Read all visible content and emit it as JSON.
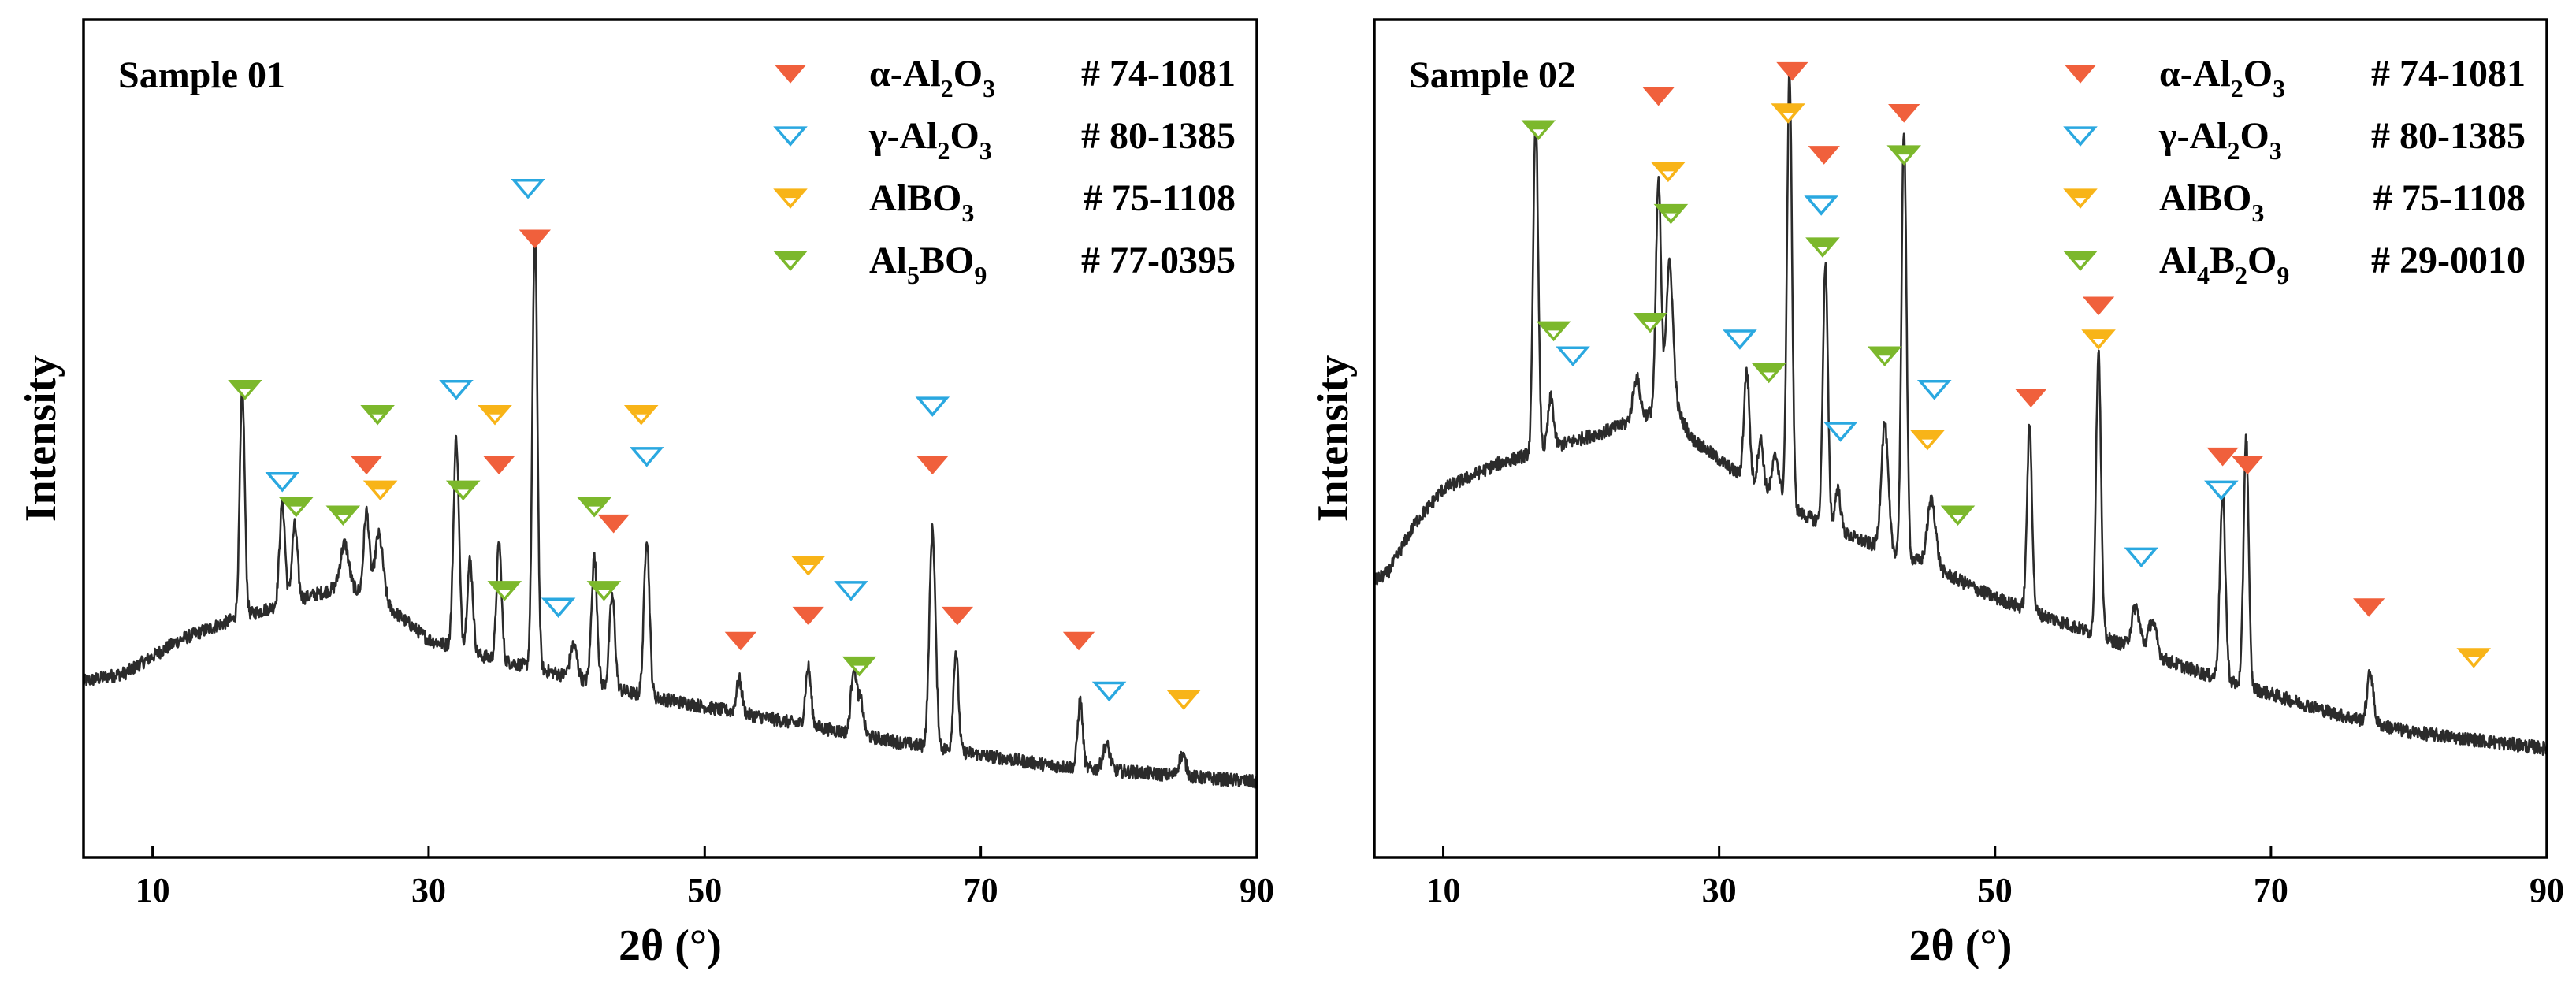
{
  "colors": {
    "alpha": "#f0603c",
    "gamma": "#2aa8e0",
    "albo3": "#f8b418",
    "minor": "#7cb82c",
    "line": "#2b2b2b"
  },
  "chart_data": [
    {
      "type": "line",
      "title": "Sample 01",
      "xlabel": "2θ  (°)",
      "ylabel": "Intensity",
      "xlim": [
        5,
        90
      ],
      "ylim": [
        0,
        100
      ],
      "xticks": [
        10,
        30,
        50,
        70,
        90
      ],
      "xtick_labels": [
        "10",
        "30",
        "50",
        "70",
        "90"
      ],
      "legend": [
        {
          "phase": "alpha",
          "filled": true,
          "base": "α-Al",
          "s1": "2",
          "mid": "O",
          "s2": "3",
          "card": "# 74-1081"
        },
        {
          "phase": "gamma",
          "filled": false,
          "base": "γ-Al",
          "s1": "2",
          "mid": "O",
          "s2": "3",
          "card": "# 80-1385"
        },
        {
          "phase": "albo3",
          "filled": "half",
          "base": "AlBO",
          "s1": "3",
          "mid": "",
          "s2": "",
          "card": "# 75-1108"
        },
        {
          "phase": "minor",
          "filled": "half",
          "base": "Al",
          "s1": "5",
          "mid": "BO",
          "s2": "9",
          "card": "# 77-0395"
        }
      ],
      "baseline": [
        [
          5,
          21.0
        ],
        [
          8,
          22.0
        ],
        [
          12,
          26.0
        ],
        [
          16,
          28.5
        ],
        [
          20,
          30.5
        ],
        [
          24,
          32.5
        ],
        [
          27,
          30.0
        ],
        [
          30,
          26.0
        ],
        [
          34,
          24.0
        ],
        [
          38,
          22.5
        ],
        [
          45,
          19.5
        ],
        [
          55,
          16.5
        ],
        [
          65,
          13.5
        ],
        [
          75,
          11.0
        ],
        [
          90,
          9.0
        ]
      ],
      "peaks": [
        {
          "x": 16.5,
          "h": 27,
          "w": 0.18
        },
        {
          "x": 19.4,
          "h": 12,
          "w": 0.2
        },
        {
          "x": 20.3,
          "h": 9,
          "w": 0.2
        },
        {
          "x": 23.9,
          "h": 5,
          "w": 0.3
        },
        {
          "x": 25.5,
          "h": 10,
          "w": 0.2
        },
        {
          "x": 26.4,
          "h": 8,
          "w": 0.3
        },
        {
          "x": 32.0,
          "h": 25,
          "w": 0.2
        },
        {
          "x": 33.0,
          "h": 11,
          "w": 0.2
        },
        {
          "x": 35.1,
          "h": 14,
          "w": 0.18
        },
        {
          "x": 37.7,
          "h": 52,
          "w": 0.18
        },
        {
          "x": 40.5,
          "h": 4,
          "w": 0.25
        },
        {
          "x": 42.0,
          "h": 15,
          "w": 0.2
        },
        {
          "x": 43.3,
          "h": 11,
          "w": 0.2
        },
        {
          "x": 45.8,
          "h": 19,
          "w": 0.2
        },
        {
          "x": 52.5,
          "h": 4,
          "w": 0.2
        },
        {
          "x": 57.5,
          "h": 7,
          "w": 0.2
        },
        {
          "x": 60.8,
          "h": 8,
          "w": 0.2
        },
        {
          "x": 61.3,
          "h": 4,
          "w": 0.2
        },
        {
          "x": 66.5,
          "h": 26,
          "w": 0.22
        },
        {
          "x": 68.2,
          "h": 12,
          "w": 0.18
        },
        {
          "x": 77.2,
          "h": 8,
          "w": 0.18
        },
        {
          "x": 79.1,
          "h": 3,
          "w": 0.25
        },
        {
          "x": 84.6,
          "h": 2.5,
          "w": 0.25
        }
      ],
      "markers": [
        {
          "x": 16.7,
          "y": 56,
          "phase": "minor"
        },
        {
          "x": 19.4,
          "y": 45,
          "phase": "gamma"
        },
        {
          "x": 20.4,
          "y": 42,
          "phase": "minor"
        },
        {
          "x": 23.8,
          "y": 41,
          "phase": "minor"
        },
        {
          "x": 25.5,
          "y": 47,
          "phase": "alpha"
        },
        {
          "x": 26.3,
          "y": 53,
          "phase": "minor"
        },
        {
          "x": 26.5,
          "y": 44,
          "phase": "albo3"
        },
        {
          "x": 32.0,
          "y": 56,
          "phase": "gamma"
        },
        {
          "x": 32.5,
          "y": 44,
          "phase": "minor"
        },
        {
          "x": 34.8,
          "y": 53,
          "phase": "albo3"
        },
        {
          "x": 35.1,
          "y": 47,
          "phase": "alpha"
        },
        {
          "x": 35.5,
          "y": 32,
          "phase": "minor"
        },
        {
          "x": 37.2,
          "y": 80,
          "phase": "gamma"
        },
        {
          "x": 37.7,
          "y": 74,
          "phase": "alpha"
        },
        {
          "x": 39.4,
          "y": 30,
          "phase": "gamma"
        },
        {
          "x": 42.0,
          "y": 42,
          "phase": "minor"
        },
        {
          "x": 42.7,
          "y": 32,
          "phase": "minor"
        },
        {
          "x": 43.4,
          "y": 40,
          "phase": "alpha"
        },
        {
          "x": 45.4,
          "y": 53,
          "phase": "albo3"
        },
        {
          "x": 45.8,
          "y": 48,
          "phase": "gamma"
        },
        {
          "x": 52.6,
          "y": 26,
          "phase": "alpha"
        },
        {
          "x": 57.5,
          "y": 35,
          "phase": "albo3"
        },
        {
          "x": 57.5,
          "y": 29,
          "phase": "alpha"
        },
        {
          "x": 60.6,
          "y": 32,
          "phase": "gamma"
        },
        {
          "x": 61.2,
          "y": 23,
          "phase": "minor"
        },
        {
          "x": 66.5,
          "y": 54,
          "phase": "gamma"
        },
        {
          "x": 66.5,
          "y": 47,
          "phase": "alpha"
        },
        {
          "x": 68.3,
          "y": 29,
          "phase": "alpha"
        },
        {
          "x": 77.1,
          "y": 26,
          "phase": "alpha"
        },
        {
          "x": 79.3,
          "y": 20,
          "phase": "gamma"
        },
        {
          "x": 84.7,
          "y": 19,
          "phase": "albo3"
        }
      ]
    },
    {
      "type": "line",
      "title": "Sample 02",
      "xlabel": "2θ  (°)",
      "ylabel": "Intensity",
      "xlim": [
        5,
        90
      ],
      "ylim": [
        0,
        100
      ],
      "xticks": [
        10,
        30,
        50,
        70,
        90
      ],
      "xtick_labels": [
        "10",
        "30",
        "50",
        "70",
        "90"
      ],
      "legend": [
        {
          "phase": "alpha",
          "filled": true,
          "base": "α-Al",
          "s1": "2",
          "mid": "O",
          "s2": "3",
          "card": "# 74-1081"
        },
        {
          "phase": "gamma",
          "filled": false,
          "base": "γ-Al",
          "s1": "2",
          "mid": "O",
          "s2": "3",
          "card": "# 80-1385"
        },
        {
          "phase": "albo3",
          "filled": "half",
          "base": "AlBO",
          "s1": "3",
          "mid": "",
          "s2": "",
          "card": "# 75-1108"
        },
        {
          "phase": "minor",
          "filled": "half",
          "base": "Al",
          "s1": "4",
          "mid": "B",
          "s2": "2",
          "tail": "O",
          "s3": "9",
          "card": "# 29-0010"
        }
      ],
      "baseline": [
        [
          5,
          33.0
        ],
        [
          6,
          34.0
        ],
        [
          8,
          40.0
        ],
        [
          10,
          44.0
        ],
        [
          14,
          47.0
        ],
        [
          18,
          49.0
        ],
        [
          22,
          51.0
        ],
        [
          25,
          53.0
        ],
        [
          26.5,
          55.0
        ],
        [
          28,
          50.0
        ],
        [
          32,
          45.0
        ],
        [
          36,
          41.0
        ],
        [
          40,
          38.0
        ],
        [
          45,
          35.0
        ],
        [
          50,
          31.0
        ],
        [
          55,
          28.0
        ],
        [
          60,
          25.0
        ],
        [
          65,
          22.0
        ],
        [
          70,
          19.5
        ],
        [
          75,
          17.0
        ],
        [
          80,
          15.0
        ],
        [
          85,
          14.0
        ],
        [
          90,
          13.0
        ]
      ],
      "peaks": [
        {
          "x": 16.7,
          "h": 40,
          "w": 0.18
        },
        {
          "x": 17.8,
          "h": 6,
          "w": 0.2
        },
        {
          "x": 24.0,
          "h": 5,
          "w": 0.25
        },
        {
          "x": 25.6,
          "h": 27,
          "w": 0.18
        },
        {
          "x": 26.4,
          "h": 16,
          "w": 0.25
        },
        {
          "x": 32.0,
          "h": 13,
          "w": 0.2
        },
        {
          "x": 33.0,
          "h": 6,
          "w": 0.2
        },
        {
          "x": 34.1,
          "h": 5,
          "w": 0.25
        },
        {
          "x": 35.1,
          "h": 52,
          "w": 0.18
        },
        {
          "x": 37.7,
          "h": 31,
          "w": 0.18
        },
        {
          "x": 38.6,
          "h": 5,
          "w": 0.2
        },
        {
          "x": 42.0,
          "h": 15,
          "w": 0.25
        },
        {
          "x": 43.4,
          "h": 51,
          "w": 0.18
        },
        {
          "x": 45.4,
          "h": 8,
          "w": 0.3
        },
        {
          "x": 52.5,
          "h": 22,
          "w": 0.18
        },
        {
          "x": 57.5,
          "h": 34,
          "w": 0.18
        },
        {
          "x": 60.2,
          "h": 5,
          "w": 0.3
        },
        {
          "x": 61.4,
          "h": 4,
          "w": 0.3
        },
        {
          "x": 66.5,
          "h": 22,
          "w": 0.2
        },
        {
          "x": 68.2,
          "h": 30,
          "w": 0.18
        },
        {
          "x": 77.2,
          "h": 6,
          "w": 0.22
        }
      ],
      "markers": [
        {
          "x": 16.9,
          "y": 87,
          "phase": "minor"
        },
        {
          "x": 18.0,
          "y": 63,
          "phase": "minor"
        },
        {
          "x": 19.4,
          "y": 60,
          "phase": "gamma"
        },
        {
          "x": 25.0,
          "y": 64,
          "phase": "minor"
        },
        {
          "x": 25.6,
          "y": 91,
          "phase": "alpha"
        },
        {
          "x": 26.3,
          "y": 82,
          "phase": "albo3"
        },
        {
          "x": 26.5,
          "y": 77,
          "phase": "minor"
        },
        {
          "x": 31.5,
          "y": 62,
          "phase": "gamma"
        },
        {
          "x": 33.6,
          "y": 58,
          "phase": "minor"
        },
        {
          "x": 35.0,
          "y": 89,
          "phase": "albo3"
        },
        {
          "x": 35.3,
          "y": 94,
          "phase": "alpha"
        },
        {
          "x": 37.6,
          "y": 84,
          "phase": "alpha"
        },
        {
          "x": 37.4,
          "y": 78,
          "phase": "gamma"
        },
        {
          "x": 37.5,
          "y": 73,
          "phase": "minor"
        },
        {
          "x": 38.8,
          "y": 51,
          "phase": "gamma"
        },
        {
          "x": 42.0,
          "y": 60,
          "phase": "minor"
        },
        {
          "x": 43.4,
          "y": 89,
          "phase": "alpha"
        },
        {
          "x": 43.4,
          "y": 84,
          "phase": "minor"
        },
        {
          "x": 45.1,
          "y": 50,
          "phase": "albo3"
        },
        {
          "x": 45.6,
          "y": 56,
          "phase": "gamma"
        },
        {
          "x": 47.3,
          "y": 41,
          "phase": "minor"
        },
        {
          "x": 52.6,
          "y": 55,
          "phase": "alpha"
        },
        {
          "x": 57.5,
          "y": 66,
          "phase": "alpha"
        },
        {
          "x": 57.5,
          "y": 62,
          "phase": "albo3"
        },
        {
          "x": 60.6,
          "y": 36,
          "phase": "gamma"
        },
        {
          "x": 66.4,
          "y": 44,
          "phase": "gamma"
        },
        {
          "x": 66.5,
          "y": 48,
          "phase": "alpha"
        },
        {
          "x": 68.3,
          "y": 47,
          "phase": "alpha"
        },
        {
          "x": 77.1,
          "y": 30,
          "phase": "alpha"
        },
        {
          "x": 84.7,
          "y": 24,
          "phase": "albo3"
        }
      ]
    }
  ]
}
